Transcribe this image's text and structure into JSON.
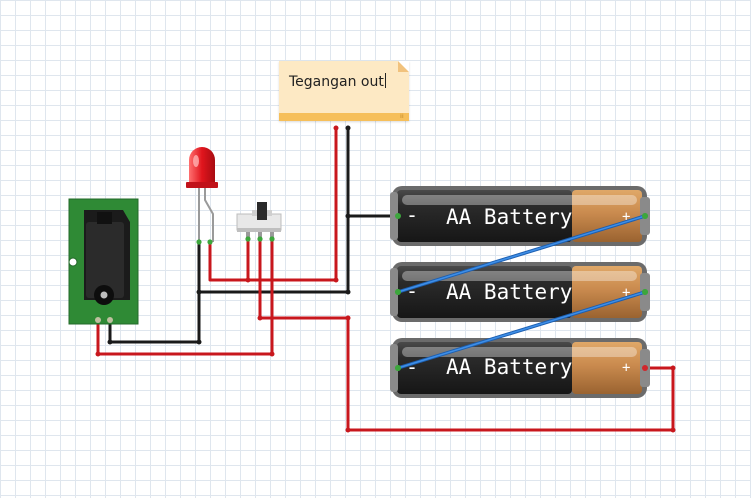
{
  "note": {
    "text": "Tegangan out"
  },
  "batteries": [
    {
      "label": "AA Battery",
      "minus": "-",
      "plus": "+"
    },
    {
      "label": "AA Battery",
      "minus": "-",
      "plus": "+"
    },
    {
      "label": "AA Battery",
      "minus": "-",
      "plus": "+"
    }
  ],
  "colors": {
    "wire_red": "#c8171d",
    "wire_black": "#1a1a1a",
    "wire_blue": "#2f7cd6",
    "note_bg": "#fde9c4",
    "pcb_green": "#2f8a35",
    "battery_body": "#2a2a2a",
    "battery_cap": "#c98a4e"
  },
  "icons": [
    "dc-barrel-jack",
    "red-led",
    "slide-switch",
    "aa-battery",
    "sticky-note"
  ]
}
